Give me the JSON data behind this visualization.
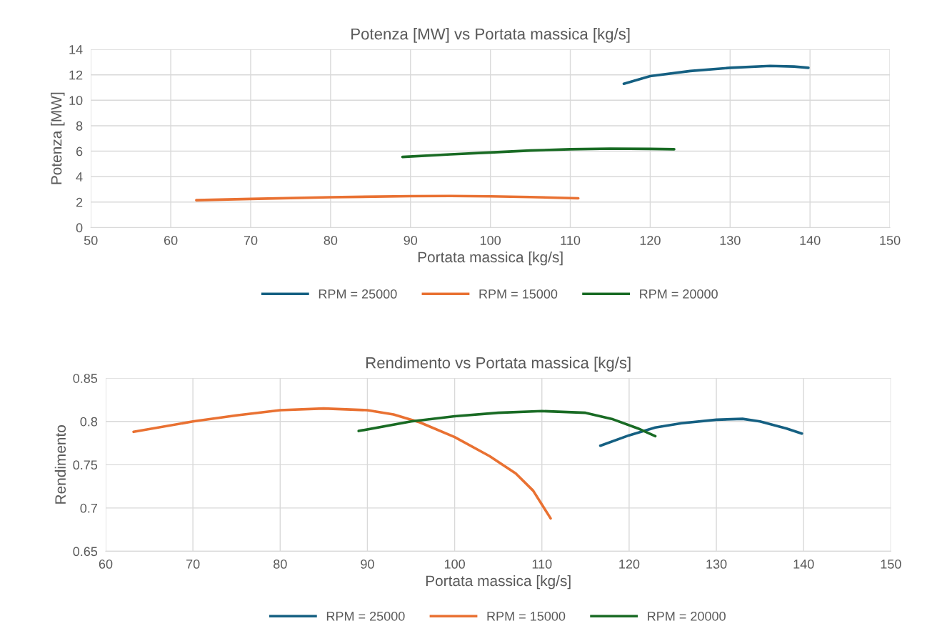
{
  "chart_data": [
    {
      "type": "line",
      "title": "Potenza [MW] vs Portata massica [kg/s]",
      "xlabel": "Portata massica [kg/s]",
      "ylabel": "Potenza [MW]",
      "xlim": [
        50,
        150
      ],
      "xticks": [
        50,
        60,
        70,
        80,
        90,
        100,
        110,
        120,
        130,
        140,
        150
      ],
      "ylim": [
        0,
        14
      ],
      "yticks": [
        0,
        2,
        4,
        6,
        8,
        10,
        12,
        14
      ],
      "grid": true,
      "legend": "bottom",
      "marker": "none",
      "line_style": "solid",
      "series": [
        {
          "name": "RPM = 25000",
          "color": "#156082",
          "x": [
            116.7,
            120,
            125,
            130,
            135,
            138,
            139.8
          ],
          "values": [
            11.3,
            11.9,
            12.3,
            12.55,
            12.7,
            12.65,
            12.55
          ]
        },
        {
          "name": "RPM = 15000",
          "color": "#e97132",
          "x": [
            63.2,
            70,
            80,
            90,
            95,
            100,
            105,
            111
          ],
          "values": [
            2.15,
            2.25,
            2.38,
            2.47,
            2.48,
            2.45,
            2.4,
            2.3
          ]
        },
        {
          "name": "RPM = 20000",
          "color": "#196b24",
          "x": [
            89,
            95,
            100,
            105,
            110,
            115,
            120,
            123
          ],
          "values": [
            5.55,
            5.75,
            5.9,
            6.05,
            6.15,
            6.2,
            6.18,
            6.15
          ]
        }
      ]
    },
    {
      "type": "line",
      "title": "Rendimento vs Portata massica [kg/s]",
      "xlabel": "Portata massica [kg/s]",
      "ylabel": "Rendimento",
      "xlim": [
        60,
        150
      ],
      "xticks": [
        60,
        70,
        80,
        90,
        100,
        110,
        120,
        130,
        140,
        150
      ],
      "ylim": [
        0.65,
        0.85
      ],
      "yticks": [
        0.65,
        0.7,
        0.75,
        0.8,
        0.85
      ],
      "grid": true,
      "legend": "bottom",
      "marker": "none",
      "line_style": "solid",
      "series": [
        {
          "name": "RPM = 25000",
          "color": "#156082",
          "x": [
            116.7,
            120,
            123,
            126,
            130,
            133,
            135,
            138,
            139.8
          ],
          "values": [
            0.772,
            0.784,
            0.793,
            0.798,
            0.802,
            0.803,
            0.8,
            0.792,
            0.786
          ]
        },
        {
          "name": "RPM = 15000",
          "color": "#e97132",
          "x": [
            63.2,
            70,
            75,
            80,
            85,
            90,
            93,
            96,
            100,
            104,
            107,
            109,
            111
          ],
          "values": [
            0.788,
            0.8,
            0.807,
            0.813,
            0.815,
            0.813,
            0.808,
            0.799,
            0.782,
            0.76,
            0.74,
            0.72,
            0.688
          ]
        },
        {
          "name": "RPM = 20000",
          "color": "#196b24",
          "x": [
            89,
            95,
            100,
            105,
            110,
            115,
            118,
            121,
            123
          ],
          "values": [
            0.789,
            0.8,
            0.806,
            0.81,
            0.812,
            0.81,
            0.803,
            0.792,
            0.783
          ]
        }
      ]
    }
  ]
}
